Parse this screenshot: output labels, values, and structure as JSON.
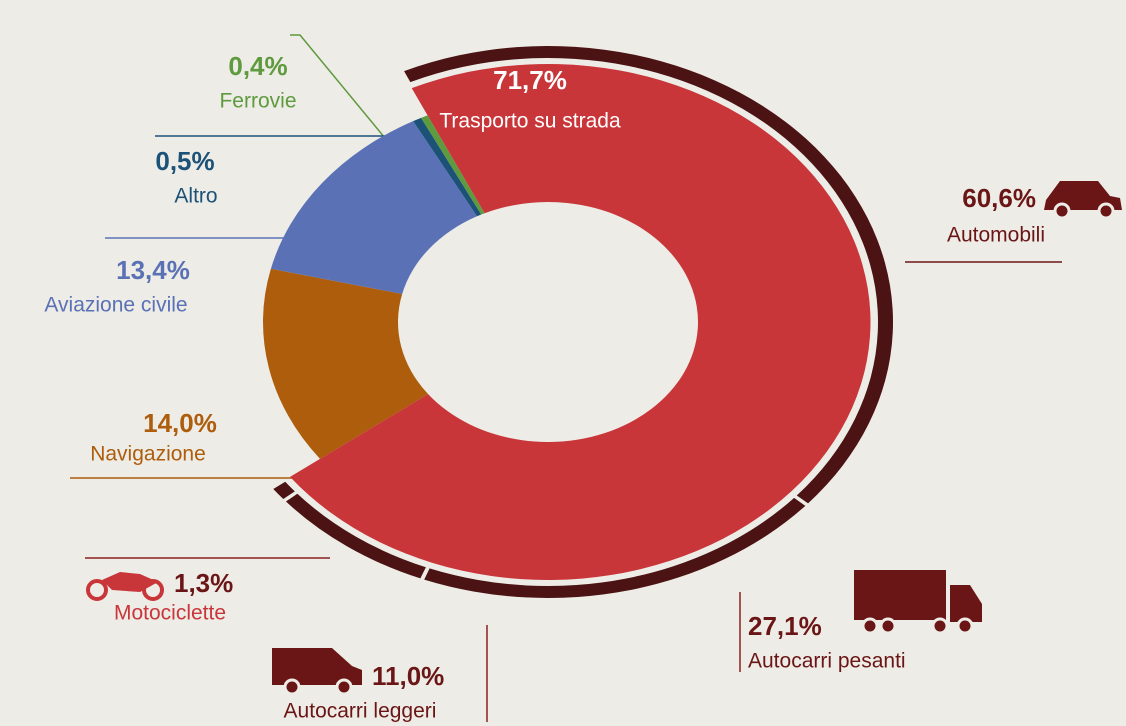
{
  "chart_data": {
    "type": "donut",
    "categories": [
      "Trasporto su strada",
      "Navigazione",
      "Aviazione civile",
      "Altro",
      "Ferrovie"
    ],
    "values": [
      71.7,
      14.0,
      13.4,
      0.5,
      0.4
    ],
    "value_labels": [
      "71,7%",
      "14,0%",
      "13,4%",
      "0,5%",
      "0,4%"
    ],
    "colors": [
      "#c9363a",
      "#ad5d0c",
      "#5a71b6",
      "#1c5278",
      "#5e9a3e"
    ],
    "subcategories": {
      "categories": [
        "Automobili",
        "Autocarri pesanti",
        "Autocarri leggeri",
        "Motociclette"
      ],
      "values": [
        60.6,
        27.1,
        11.0,
        1.3
      ],
      "value_labels": [
        "60,6%",
        "27,1%",
        "11,0%",
        "1,3%"
      ],
      "color": "#4b1313"
    }
  }
}
